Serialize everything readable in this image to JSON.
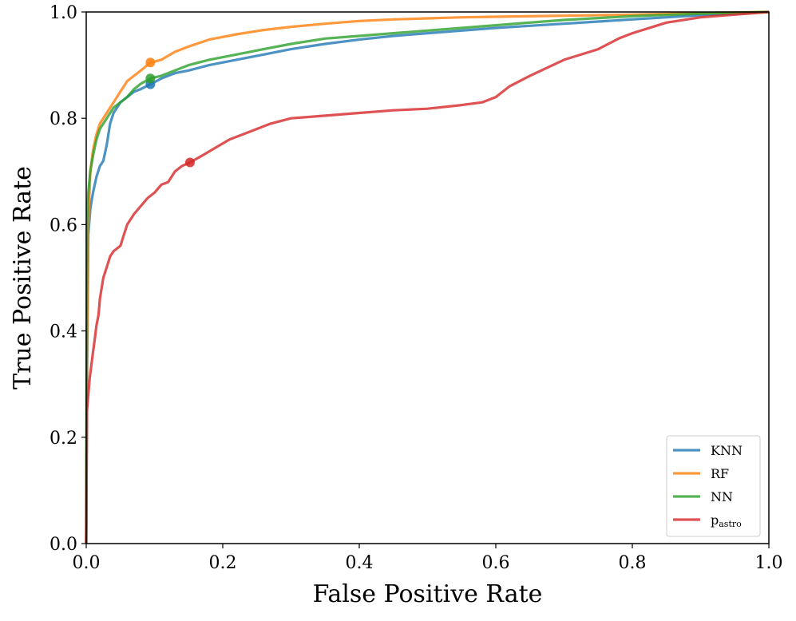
{
  "chart_data": {
    "type": "line",
    "title": "",
    "xlabel": "False Positive Rate",
    "ylabel": "True Positive Rate",
    "xlim": [
      0.0,
      1.0
    ],
    "ylim": [
      0.0,
      1.0
    ],
    "grid": false,
    "legend_placement": "bottom-right",
    "x_ticks": [
      "0.0",
      "0.2",
      "0.4",
      "0.6",
      "0.8",
      "1.0"
    ],
    "y_ticks": [
      "0.0",
      "0.2",
      "0.4",
      "0.6",
      "0.8",
      "1.0"
    ],
    "series": [
      {
        "name": "KNN",
        "legend_main": "KNN",
        "legend_sub": "",
        "color": "#1f77b4",
        "operating_point": [
          0.094,
          0.864
        ],
        "x": [
          0,
          0.001,
          0.003,
          0.006,
          0.01,
          0.015,
          0.02,
          0.025,
          0.03,
          0.035,
          0.04,
          0.05,
          0.06,
          0.07,
          0.08,
          0.094,
          0.11,
          0.13,
          0.15,
          0.18,
          0.22,
          0.26,
          0.3,
          0.35,
          0.4,
          0.45,
          0.5,
          0.55,
          0.6,
          0.65,
          0.7,
          0.75,
          0.8,
          0.85,
          0.9,
          0.95,
          1.0
        ],
        "y": [
          0,
          0.3,
          0.58,
          0.63,
          0.66,
          0.69,
          0.71,
          0.72,
          0.75,
          0.79,
          0.81,
          0.83,
          0.84,
          0.85,
          0.855,
          0.864,
          0.875,
          0.885,
          0.89,
          0.9,
          0.91,
          0.92,
          0.93,
          0.94,
          0.948,
          0.955,
          0.96,
          0.965,
          0.97,
          0.974,
          0.978,
          0.982,
          0.986,
          0.99,
          0.994,
          0.997,
          1.0
        ]
      },
      {
        "name": "RF",
        "legend_main": "RF",
        "legend_sub": "",
        "color": "#ff7f0e",
        "operating_point": [
          0.094,
          0.905
        ],
        "x": [
          0,
          0.001,
          0.003,
          0.006,
          0.01,
          0.015,
          0.02,
          0.03,
          0.04,
          0.05,
          0.06,
          0.07,
          0.08,
          0.094,
          0.11,
          0.13,
          0.15,
          0.18,
          0.22,
          0.26,
          0.3,
          0.35,
          0.4,
          0.45,
          0.5,
          0.55,
          0.6,
          0.7,
          0.8,
          0.9,
          1.0
        ],
        "y": [
          0,
          0.35,
          0.6,
          0.7,
          0.74,
          0.77,
          0.79,
          0.81,
          0.83,
          0.85,
          0.87,
          0.88,
          0.89,
          0.905,
          0.91,
          0.925,
          0.935,
          0.948,
          0.958,
          0.966,
          0.972,
          0.978,
          0.983,
          0.986,
          0.988,
          0.99,
          0.991,
          0.993,
          0.995,
          0.998,
          1.0
        ]
      },
      {
        "name": "NN",
        "legend_main": "NN",
        "legend_sub": "",
        "color": "#2ca02c",
        "operating_point": [
          0.094,
          0.875
        ],
        "x": [
          0,
          0.001,
          0.003,
          0.006,
          0.01,
          0.015,
          0.02,
          0.03,
          0.04,
          0.05,
          0.06,
          0.07,
          0.08,
          0.094,
          0.11,
          0.13,
          0.15,
          0.18,
          0.22,
          0.26,
          0.3,
          0.35,
          0.4,
          0.45,
          0.5,
          0.55,
          0.6,
          0.7,
          0.8,
          0.9,
          1.0
        ],
        "y": [
          0,
          0.6,
          0.66,
          0.7,
          0.73,
          0.76,
          0.78,
          0.8,
          0.82,
          0.83,
          0.84,
          0.855,
          0.865,
          0.875,
          0.88,
          0.89,
          0.9,
          0.91,
          0.92,
          0.93,
          0.94,
          0.95,
          0.955,
          0.96,
          0.965,
          0.97,
          0.975,
          0.985,
          0.992,
          0.997,
          1.0
        ]
      },
      {
        "name": "p_astro",
        "legend_main": "p",
        "legend_sub": "astro",
        "color": "#d62728",
        "operating_point": [
          0.152,
          0.717
        ],
        "x": [
          0,
          0.001,
          0.003,
          0.005,
          0.008,
          0.01,
          0.012,
          0.015,
          0.018,
          0.02,
          0.025,
          0.03,
          0.035,
          0.04,
          0.05,
          0.055,
          0.06,
          0.07,
          0.08,
          0.09,
          0.1,
          0.11,
          0.12,
          0.13,
          0.14,
          0.152,
          0.17,
          0.19,
          0.21,
          0.24,
          0.27,
          0.3,
          0.35,
          0.4,
          0.45,
          0.5,
          0.55,
          0.58,
          0.6,
          0.62,
          0.65,
          0.7,
          0.75,
          0.78,
          0.8,
          0.85,
          0.9,
          0.95,
          1.0
        ],
        "y": [
          0,
          0.25,
          0.28,
          0.31,
          0.34,
          0.36,
          0.38,
          0.41,
          0.43,
          0.46,
          0.5,
          0.52,
          0.54,
          0.55,
          0.56,
          0.58,
          0.6,
          0.62,
          0.635,
          0.65,
          0.66,
          0.675,
          0.68,
          0.7,
          0.71,
          0.717,
          0.73,
          0.745,
          0.76,
          0.775,
          0.79,
          0.8,
          0.805,
          0.81,
          0.815,
          0.818,
          0.825,
          0.83,
          0.84,
          0.86,
          0.88,
          0.91,
          0.93,
          0.95,
          0.96,
          0.98,
          0.99,
          0.995,
          1.0
        ]
      }
    ]
  }
}
